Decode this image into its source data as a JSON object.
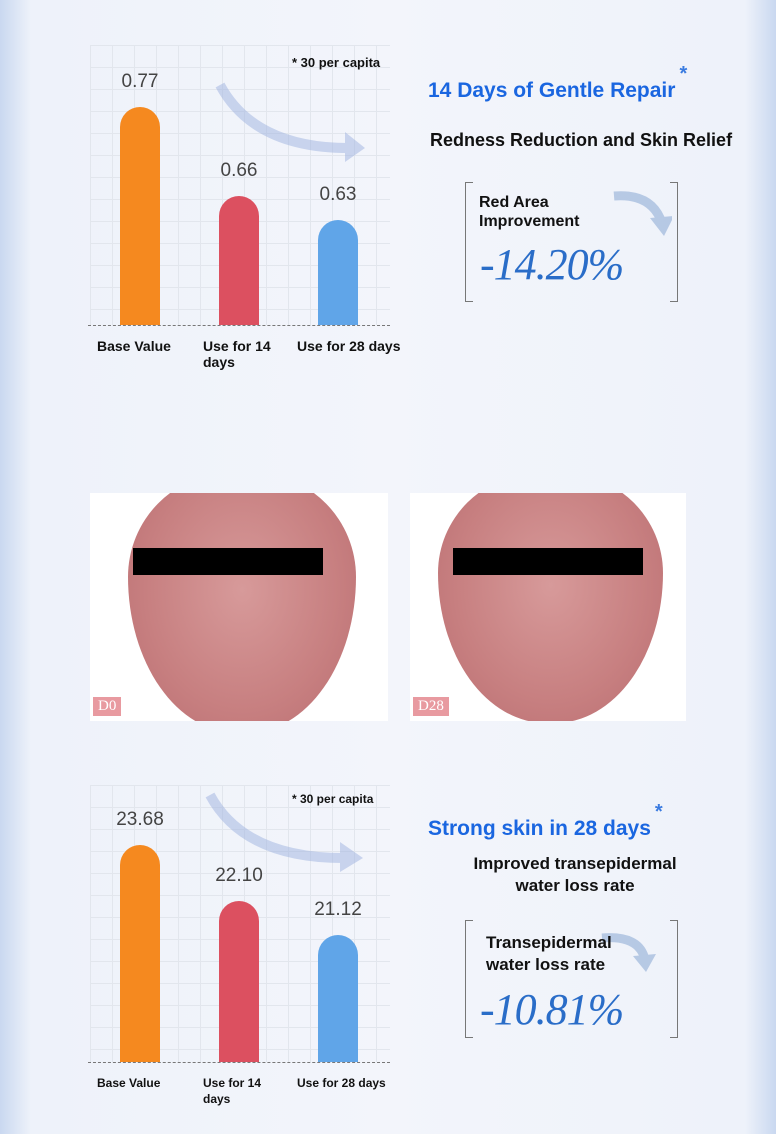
{
  "section1": {
    "note": "* 30 per capita",
    "title": "14 Days of Gentle Repair",
    "star": "*",
    "subtitle": "Redness Reduction and Skin Relief",
    "metric_label_1": "Red Area",
    "metric_label_2": "Improvement",
    "metric_value": "-14.20%"
  },
  "photos": {
    "before_label": "D0",
    "after_label": "D28"
  },
  "section2": {
    "note": "* 30 per capita",
    "title": "Strong skin in 28 days",
    "star": "*",
    "subtitle_1": "Improved transepidermal",
    "subtitle_2": "water loss rate",
    "metric_label_1": "Transepidermal",
    "metric_label_2": "water loss rate",
    "metric_value": "-10.81%"
  },
  "chart_data": [
    {
      "type": "bar",
      "categories": [
        "Base Value",
        "Use for 14 days",
        "Use for 28 days"
      ],
      "values": [
        0.77,
        0.66,
        0.63
      ],
      "value_labels": [
        "0.77",
        "0.66",
        "0.63"
      ],
      "colors": [
        "#f5891f",
        "#dc5060",
        "#60a5e8"
      ],
      "ylim": [
        0.5,
        0.8
      ]
    },
    {
      "type": "bar",
      "categories": [
        "Base Value",
        "Use for 14 days",
        "Use for 28 days"
      ],
      "values": [
        23.68,
        22.1,
        21.12
      ],
      "value_labels": [
        "23.68",
        "22.10",
        "21.12"
      ],
      "colors": [
        "#f5891f",
        "#dc5060",
        "#60a5e8"
      ],
      "ylim": [
        17.5,
        24
      ]
    }
  ]
}
